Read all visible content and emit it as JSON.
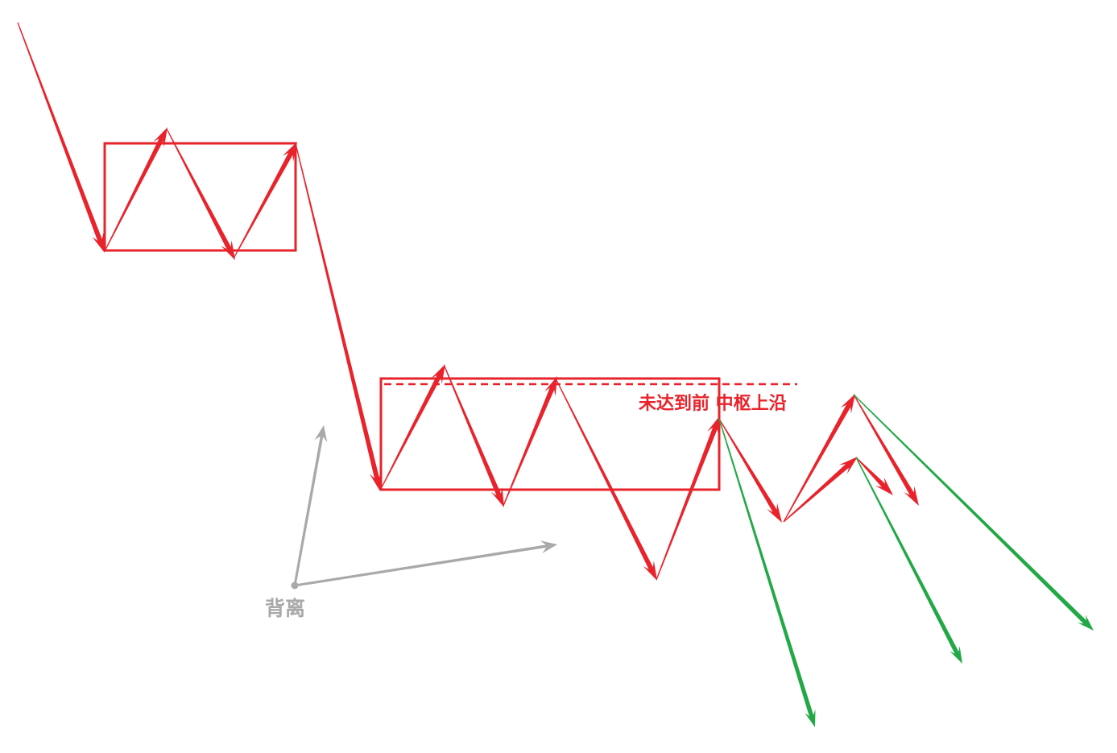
{
  "labels": {
    "pivot_top_note": "未达到前 中枢上沿",
    "divergence": "背离"
  },
  "colors": {
    "background": "#ffffff",
    "stroke": "#e8232b",
    "breakdown": "#22a846",
    "annotation": "#a9a9a9"
  }
}
